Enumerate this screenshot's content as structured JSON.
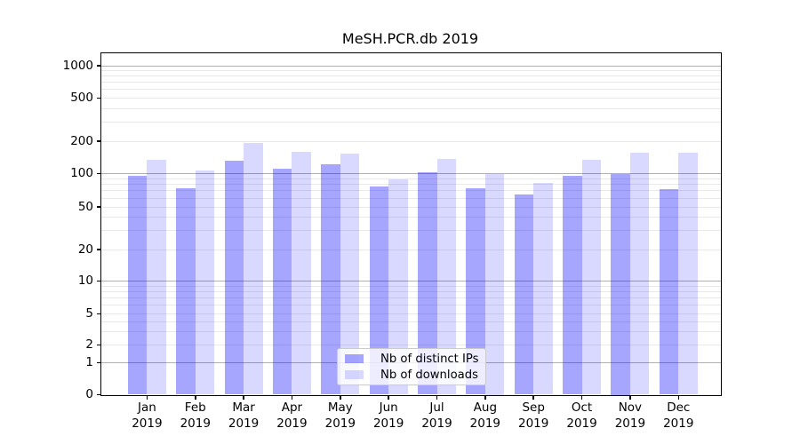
{
  "chart_data": {
    "type": "bar",
    "title": "MeSH.PCR.db 2019",
    "categories": [
      "Jan 2019",
      "Feb 2019",
      "Mar 2019",
      "Apr 2019",
      "May 2019",
      "Jun 2019",
      "Jul 2019",
      "Aug 2019",
      "Sep 2019",
      "Oct 2019",
      "Nov 2019",
      "Dec 2019"
    ],
    "series": [
      {
        "name": "Nb of distinct IPs",
        "color": "rgba(0,0,255,0.35)",
        "values": [
          95,
          74,
          132,
          111,
          122,
          76,
          102,
          74,
          65,
          96,
          100,
          73
        ]
      },
      {
        "name": "Nb of downloads",
        "color": "rgba(0,0,255,0.15)",
        "values": [
          135,
          106,
          194,
          159,
          153,
          89,
          136,
          100,
          83,
          133,
          157,
          156
        ]
      }
    ],
    "xlabel": "",
    "ylabel": "",
    "yscale": "symlog",
    "ylim": [
      0,
      1300
    ],
    "yticks_labeled": [
      0,
      1,
      2,
      5,
      10,
      20,
      50,
      100,
      200,
      500,
      1000
    ],
    "grid": true,
    "grid_major": [
      1,
      10,
      100,
      1000
    ],
    "grid_minor": [
      2,
      3,
      4,
      5,
      6,
      7,
      8,
      9,
      20,
      30,
      40,
      50,
      60,
      70,
      80,
      90,
      200,
      300,
      400,
      500,
      600,
      700,
      800,
      900
    ],
    "legend_position": "lower center",
    "colors": {
      "grid_major": "#b0b0b0",
      "grid_minor": "#e9e9e9",
      "spine": "#000000",
      "background": "#ffffff",
      "text": "#000000"
    }
  }
}
